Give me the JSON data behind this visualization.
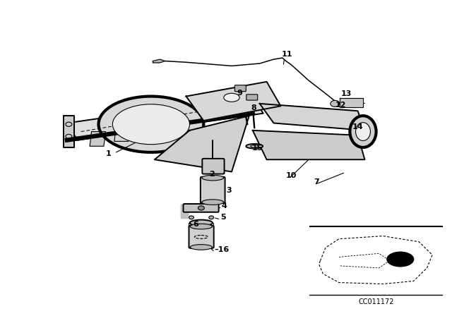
{
  "bg_color": "#ffffff",
  "line_color": "#000000",
  "label_color": "#000000",
  "fig_width": 6.4,
  "fig_height": 4.48,
  "dpi": 100,
  "catalog_code": "CC011172"
}
